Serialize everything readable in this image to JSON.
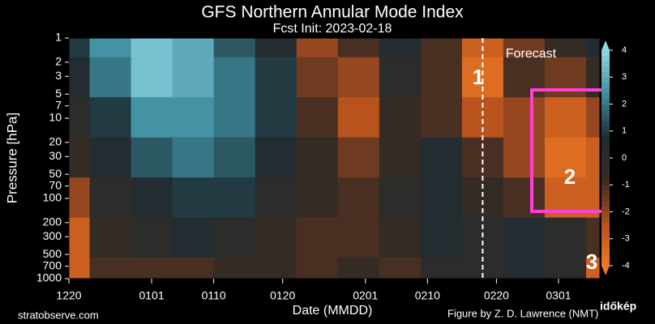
{
  "chart_data": {
    "type": "contour",
    "title": "GFS Northern Annular Mode Index",
    "subtitle": "Fcst Init: 2023-02-18",
    "x_label": "Date (MMDD)",
    "y_label": "Pressure [hPa]",
    "xlim": [
      0,
      77
    ],
    "xticks": [
      {
        "value": 0,
        "label": "1220"
      },
      {
        "value": 12,
        "label": "0101"
      },
      {
        "value": 21,
        "label": "0110"
      },
      {
        "value": 31,
        "label": "0120"
      },
      {
        "value": 43,
        "label": "0201"
      },
      {
        "value": 52,
        "label": "0210"
      },
      {
        "value": 62,
        "label": "0220"
      },
      {
        "value": 71,
        "label": "0301"
      }
    ],
    "ylim": [
      1000,
      1
    ],
    "log_y": true,
    "yticks": [
      1,
      2,
      3,
      5,
      7,
      10,
      20,
      30,
      50,
      70,
      100,
      200,
      300,
      500,
      700,
      1000
    ],
    "x": [
      0,
      6,
      12,
      18,
      24,
      30,
      36,
      42,
      48,
      54,
      60,
      66,
      72,
      78
    ],
    "levels": [
      1,
      3,
      10,
      30,
      100,
      300,
      1000
    ],
    "z": [
      [
        1,
        2.5,
        3.5,
        3,
        1.5,
        0.5,
        -2,
        -1,
        0.5,
        -1,
        -3,
        -1.5,
        -0.5,
        0.5
      ],
      [
        0.5,
        2,
        3.5,
        3,
        2,
        1,
        -1.5,
        -2,
        0,
        -1,
        -3.5,
        -1,
        -1.5,
        -0.5
      ],
      [
        0,
        1,
        2.5,
        2.5,
        2,
        1,
        -1,
        -2.5,
        -0.5,
        -1,
        -2.5,
        -2,
        -3,
        -2
      ],
      [
        -0.5,
        0.5,
        1.5,
        2,
        1.5,
        0.5,
        -0.5,
        -1.5,
        -0.5,
        0.5,
        -1,
        -2,
        -3.5,
        -3
      ],
      [
        -2,
        0,
        0.5,
        1,
        1,
        0,
        -0.5,
        -1,
        0,
        0.5,
        -0.5,
        -1,
        -3,
        -3
      ],
      [
        -3,
        -0.5,
        0,
        0.5,
        0,
        -0.5,
        -1,
        -1,
        -0.5,
        0.5,
        0,
        0.5,
        0,
        -1
      ],
      [
        -3,
        -1,
        -1,
        -1,
        -0.5,
        -0.5,
        -1,
        -0.5,
        -1,
        0,
        0,
        0.5,
        0,
        -3
      ]
    ],
    "zlim": [
      -4,
      4
    ],
    "zticks": [
      -4,
      -3,
      -2,
      -1,
      0,
      1,
      2,
      3,
      4
    ],
    "colormap": [
      "#f07a22",
      "#b4501e",
      "#3a2a22",
      "#1e2e34",
      "#3f8ea0",
      "#8fd6e6"
    ],
    "forecast_start": 60,
    "annotations": [
      "Forecast",
      "1",
      "2",
      "3"
    ],
    "source": "stratobserve.com",
    "credit": "Figure by Z. D. Lawrence (NMT)",
    "logo": "időkép"
  }
}
